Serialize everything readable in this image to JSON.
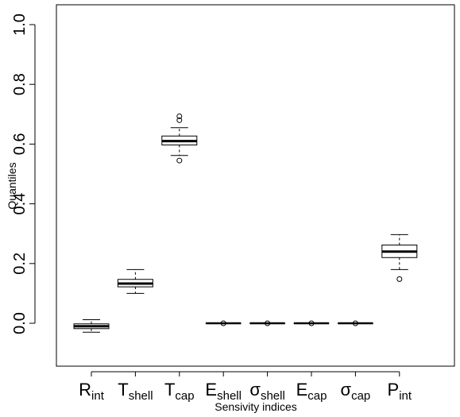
{
  "chart_data": {
    "type": "boxplot",
    "title": "",
    "xlabel": "Sensivity indices",
    "ylabel": "Quantiles",
    "ylim": [
      -0.145,
      1.03
    ],
    "yticks": [
      {
        "value": 0.0,
        "label": "0.0"
      },
      {
        "value": 0.2,
        "label": "0.2"
      },
      {
        "value": 0.4,
        "label": "0.4"
      },
      {
        "value": 0.6,
        "label": "0.6"
      },
      {
        "value": 0.8,
        "label": "0.8"
      },
      {
        "value": 1.0,
        "label": "1.0"
      }
    ],
    "grid": false,
    "categories": [
      {
        "base": "R",
        "sub": "int"
      },
      {
        "base": "T",
        "sub": "shell"
      },
      {
        "base": "T",
        "sub": "cap"
      },
      {
        "base": "E",
        "sub": "shell"
      },
      {
        "base": "σ",
        "sub": "shell"
      },
      {
        "base": "E",
        "sub": "cap"
      },
      {
        "base": "σ",
        "sub": "cap"
      },
      {
        "base": "P",
        "sub": "int"
      }
    ],
    "boxes": [
      {
        "whisker_low": -0.03,
        "q1": -0.018,
        "median": -0.01,
        "q3": -0.002,
        "whisker_high": 0.012,
        "outliers": []
      },
      {
        "whisker_low": 0.1,
        "q1": 0.122,
        "median": 0.133,
        "q3": 0.147,
        "whisker_high": 0.18,
        "outliers": []
      },
      {
        "whisker_low": 0.562,
        "q1": 0.597,
        "median": 0.61,
        "q3": 0.627,
        "whisker_high": 0.655,
        "outliers": [
          0.545,
          0.68,
          0.693
        ]
      },
      {
        "whisker_low": 0.0,
        "q1": 0.0,
        "median": 0.0,
        "q3": 0.0,
        "whisker_high": 0.0,
        "outliers": [
          0.0
        ]
      },
      {
        "whisker_low": 0.0,
        "q1": 0.0,
        "median": 0.0,
        "q3": 0.0,
        "whisker_high": 0.0,
        "outliers": [
          0.0
        ]
      },
      {
        "whisker_low": 0.0,
        "q1": 0.0,
        "median": 0.0,
        "q3": 0.0,
        "whisker_high": 0.0,
        "outliers": [
          0.0
        ]
      },
      {
        "whisker_low": 0.0,
        "q1": 0.0,
        "median": 0.0,
        "q3": 0.0,
        "whisker_high": 0.0,
        "outliers": [
          0.0
        ]
      },
      {
        "whisker_low": 0.18,
        "q1": 0.22,
        "median": 0.24,
        "q3": 0.262,
        "whisker_high": 0.297,
        "outliers": [
          0.148
        ]
      }
    ]
  }
}
